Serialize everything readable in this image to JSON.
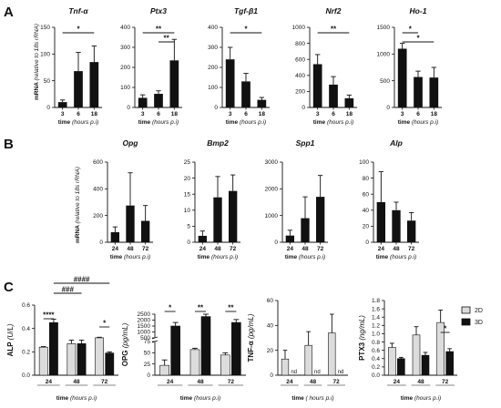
{
  "figure": {
    "panel_a": "A",
    "panel_b": "B",
    "panel_c": "C",
    "xlabel_hours_prefix": "time",
    "xlabel_hours_unit": "(hours p.i)",
    "xlabel_hours_unit_spaced": "( hours p.i)",
    "ylabel_mrna": "mRNA",
    "ylabel_mrna_rel": "(relative to 18s rRNA)",
    "legend_2d": "2D",
    "legend_3d": "3D",
    "colors": {
      "bar_dark": "#111111",
      "bar_2d": "#dcdcdc",
      "axis": "#111111"
    }
  },
  "chart_data": [
    {
      "id": "A-tnfa",
      "type": "bar",
      "title": "Tnf-α",
      "categories": [
        "3",
        "6",
        "18"
      ],
      "values": [
        10,
        68,
        85
      ],
      "errors": [
        4,
        35,
        30
      ],
      "ylim": [
        0,
        150
      ],
      "yticks": [
        0,
        50,
        100,
        150
      ],
      "annotations": [
        {
          "from": 0,
          "to": 2,
          "label": "*"
        }
      ]
    },
    {
      "id": "A-ptx3",
      "type": "bar",
      "title": "Ptx3",
      "categories": [
        "3",
        "6",
        "18"
      ],
      "values": [
        48,
        68,
        235
      ],
      "errors": [
        15,
        15,
        105
      ],
      "ylim": [
        0,
        400
      ],
      "yticks": [
        0,
        100,
        200,
        300,
        400
      ],
      "annotations": [
        {
          "from": 0,
          "to": 2,
          "label": "**"
        },
        {
          "from": 1,
          "to": 2,
          "label": "**"
        }
      ]
    },
    {
      "id": "A-tgfb1",
      "type": "bar",
      "title": "Tgf-β1",
      "categories": [
        "3",
        "6",
        "18"
      ],
      "values": [
        240,
        130,
        38
      ],
      "errors": [
        60,
        40,
        12
      ],
      "ylim": [
        0,
        400
      ],
      "yticks": [
        0,
        100,
        200,
        300,
        400
      ],
      "annotations": [
        {
          "from": 0,
          "to": 2,
          "label": "*"
        }
      ]
    },
    {
      "id": "A-nrf2",
      "type": "bar",
      "title": "Nrf2",
      "categories": [
        "3",
        "6",
        "18"
      ],
      "values": [
        540,
        285,
        115
      ],
      "errors": [
        120,
        100,
        40
      ],
      "ylim": [
        0,
        1000
      ],
      "yticks": [
        0,
        200,
        400,
        600,
        800,
        1000
      ],
      "annotations": [
        {
          "from": 0,
          "to": 2,
          "label": "**"
        }
      ]
    },
    {
      "id": "A-ho1",
      "type": "bar",
      "title": "Ho-1",
      "categories": [
        "3",
        "6",
        "18"
      ],
      "values": [
        1100,
        570,
        560
      ],
      "errors": [
        100,
        110,
        190
      ],
      "ylim": [
        0,
        1500
      ],
      "yticks": [
        0,
        500,
        1000,
        1500
      ],
      "annotations": [
        {
          "from": 0,
          "to": 1,
          "label": "*"
        },
        {
          "from": 0,
          "to": 2,
          "label": "*"
        }
      ]
    },
    {
      "id": "B-opg",
      "type": "bar",
      "title": "Opg",
      "categories": [
        "24",
        "48",
        "72"
      ],
      "values": [
        75,
        275,
        160
      ],
      "errors": [
        40,
        245,
        115
      ],
      "ylim": [
        0,
        600
      ],
      "yticks": [
        0,
        200,
        400,
        600
      ],
      "annotations": []
    },
    {
      "id": "B-bmp2",
      "type": "bar",
      "title": "Bmp2",
      "categories": [
        "24",
        "48",
        "72"
      ],
      "values": [
        2,
        14,
        16
      ],
      "errors": [
        1.5,
        6.5,
        5
      ],
      "ylim": [
        0,
        25
      ],
      "yticks": [
        0,
        5,
        10,
        15,
        20,
        25
      ],
      "annotations": []
    },
    {
      "id": "B-spp1",
      "type": "bar",
      "title": "Spp1",
      "categories": [
        "24",
        "48",
        "72"
      ],
      "values": [
        250,
        900,
        1700
      ],
      "errors": [
        200,
        800,
        800
      ],
      "ylim": [
        0,
        3000
      ],
      "yticks": [
        0,
        1000,
        2000,
        3000
      ],
      "annotations": []
    },
    {
      "id": "B-alp",
      "type": "bar",
      "title": "Alp",
      "categories": [
        "24",
        "48",
        "72"
      ],
      "values": [
        50,
        40,
        27
      ],
      "errors": [
        38,
        10,
        10
      ],
      "ylim": [
        0,
        100
      ],
      "yticks": [
        0,
        20,
        40,
        60,
        80,
        100
      ],
      "annotations": []
    },
    {
      "id": "C-alp",
      "type": "bar",
      "title": "",
      "ylabel": "ALP",
      "yunit": "(U/L)",
      "categories": [
        "24",
        "48",
        "72"
      ],
      "series": [
        {
          "name": "2D",
          "values": [
            0.24,
            0.27,
            0.32
          ],
          "errors": [
            0.005,
            0.03,
            0.005
          ]
        },
        {
          "name": "3D",
          "values": [
            0.45,
            0.27,
            0.19
          ],
          "errors": [
            0.03,
            0.03,
            0.01
          ]
        }
      ],
      "ylim": [
        0,
        0.6
      ],
      "yticks": [
        0.0,
        0.2,
        0.4,
        0.6
      ],
      "annotations": [
        {
          "from": [
            0,
            0
          ],
          "to": [
            0,
            1
          ],
          "label": "****"
        },
        {
          "from": [
            2,
            0
          ],
          "to": [
            2,
            1
          ],
          "label": "*"
        },
        {
          "from": [
            0,
            1
          ],
          "to": [
            1,
            1
          ],
          "label": "###"
        },
        {
          "from": [
            0,
            1
          ],
          "to": [
            2,
            1
          ],
          "label": "####"
        }
      ]
    },
    {
      "id": "C-opg",
      "type": "bar",
      "title": "",
      "ylabel": "OPG",
      "yunit": "(pg/mL)",
      "categories": [
        "24",
        "48",
        "72"
      ],
      "series": [
        {
          "name": "2D",
          "values": [
            22,
            57,
            45
          ],
          "errors": [
            12,
            3,
            5
          ]
        },
        {
          "name": "3D",
          "values": [
            1500,
            2300,
            1800
          ],
          "errors": [
            300,
            200,
            250
          ]
        }
      ],
      "broken_axis": {
        "lower": [
          0,
          75
        ],
        "upper": [
          500,
          2500
        ]
      },
      "yticks_lower": [
        0,
        25,
        50,
        75
      ],
      "yticks_upper": [
        500,
        1000,
        1500,
        2000,
        2500
      ],
      "annotations": [
        {
          "from": [
            0,
            0
          ],
          "to": [
            0,
            1
          ],
          "label": "*"
        },
        {
          "from": [
            1,
            0
          ],
          "to": [
            1,
            1
          ],
          "label": "**"
        },
        {
          "from": [
            2,
            0
          ],
          "to": [
            2,
            1
          ],
          "label": "**"
        }
      ]
    },
    {
      "id": "C-tnfa",
      "type": "bar",
      "title": "",
      "ylabel": "TNF-α",
      "yunit": "(pg/mL)",
      "categories": [
        "24",
        "48",
        "72"
      ],
      "series": [
        {
          "name": "2D",
          "values": [
            13,
            24,
            34
          ],
          "errors": [
            7,
            11,
            15
          ]
        },
        {
          "name": "3D",
          "values": [
            0,
            0,
            0
          ],
          "errors": [
            0,
            0,
            0
          ],
          "labels": [
            "nd",
            "nd",
            "nd"
          ]
        }
      ],
      "ylim": [
        0,
        60
      ],
      "yticks": [
        0,
        20,
        40,
        60
      ],
      "annotations": []
    },
    {
      "id": "C-ptx3",
      "type": "bar",
      "title": "",
      "ylabel": "PTX3",
      "yunit": "(ng/mL)",
      "categories": [
        "24",
        "48",
        "72"
      ],
      "series": [
        {
          "name": "2D",
          "values": [
            0.67,
            0.97,
            1.27
          ],
          "errors": [
            0.1,
            0.2,
            0.3
          ]
        },
        {
          "name": "3D",
          "values": [
            0.4,
            0.48,
            0.57
          ],
          "errors": [
            0.03,
            0.07,
            0.07
          ]
        }
      ],
      "ylim": [
        0,
        1.8
      ],
      "yticks": [
        0.0,
        0.2,
        0.4,
        0.6,
        0.8,
        1.0,
        1.2,
        1.4,
        1.6,
        1.8
      ],
      "annotations": [
        {
          "from": [
            2,
            0
          ],
          "to": [
            2,
            1
          ],
          "label": "*"
        }
      ]
    }
  ]
}
